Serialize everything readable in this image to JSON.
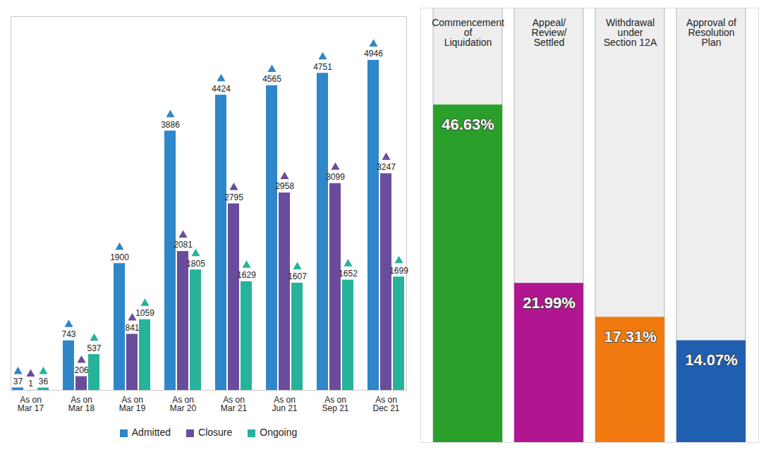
{
  "chart_data": [
    {
      "type": "bar",
      "categories": [
        "As on Mar 17",
        "As on Mar 18",
        "As on Mar 19",
        "As on Mar 20",
        "As on Mar 21",
        "As on Jun 21",
        "As on Sep 21",
        "As on Dec 21"
      ],
      "series": [
        {
          "name": "Admitted",
          "color": "#2f86c9",
          "values": [
            37,
            743,
            1900,
            3886,
            4424,
            4565,
            4751,
            4946
          ]
        },
        {
          "name": "Closure",
          "color": "#6a4c9c",
          "values": [
            1,
            206,
            841,
            2081,
            2795,
            2958,
            3099,
            3247
          ]
        },
        {
          "name": "Ongoing",
          "color": "#26b39a",
          "values": [
            36,
            537,
            1059,
            1805,
            1629,
            1607,
            1652,
            1699
          ]
        }
      ],
      "ylim": [
        0,
        5600
      ],
      "yticks": [],
      "data_labels": true,
      "legend": "bottom",
      "tick_labels": "x",
      "grid": false
    },
    {
      "type": "bar",
      "categories": [
        "Commencement of Liquidation",
        "Appeal/ Review/ Settled",
        "Withdrawal under Section 12A",
        "Approval of Resolution Plan"
      ],
      "values": [
        46.63,
        21.99,
        17.31,
        14.07
      ],
      "value_labels": [
        "46.63%",
        "21.99%",
        "17.31%",
        "14.07%"
      ],
      "colors": [
        "#2aa02a",
        "#b0168f",
        "#f07a10",
        "#1f5fb0"
      ],
      "ylim": [
        0,
        60
      ],
      "yticks": [],
      "data_labels": true,
      "tick_labels": false,
      "grid": false
    }
  ]
}
